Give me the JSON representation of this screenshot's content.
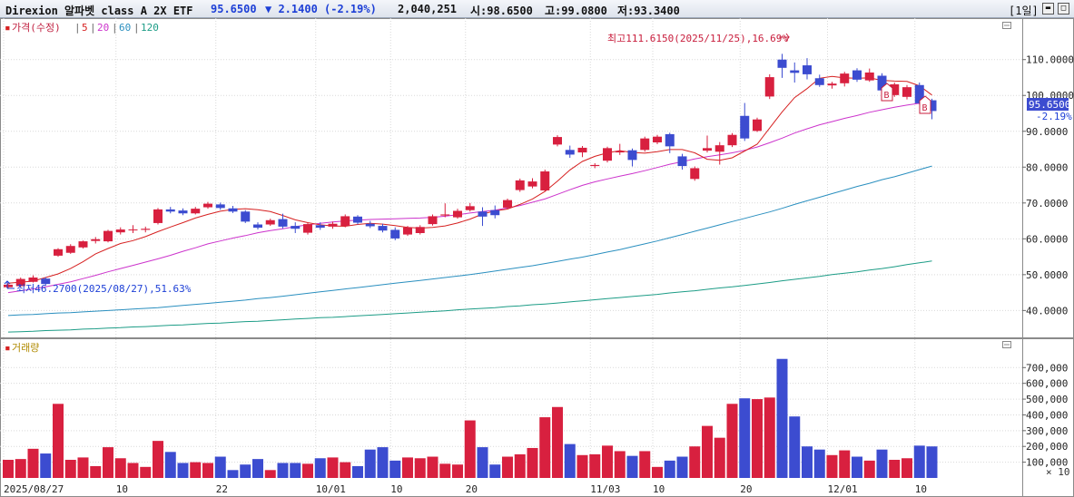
{
  "header": {
    "name": "Direxion 알파벳 class A 2X ETF",
    "price": "95.6500",
    "change": "▼ 2.1400 (-2.19%)",
    "volume": "2,040,251",
    "open": "시:98.6500",
    "high": "고:99.0800",
    "low": "저:93.3400",
    "period": "[1일]"
  },
  "price_legend": {
    "marker": "▪",
    "label": "가격(수정)",
    "ma": [
      "5",
      "20",
      "60",
      "120"
    ],
    "ma_colors": [
      "#d62020",
      "#cc33cc",
      "#2a8fbf",
      "#1c9c86"
    ]
  },
  "volume_legend": {
    "label": "거래량"
  },
  "annotations": {
    "high": "최고111.6150(2025/11/25),16.69%",
    "low": "최저46.2700(2025/08/27),51.63%",
    "last_price": "95.6500",
    "last_change": "-2.19%",
    "b_marker": "B",
    "unit": "× 10"
  },
  "colors": {
    "up": "#d8203f",
    "down": "#3c4cd0",
    "grid": "#d9d9d9",
    "ma5": "#d62020",
    "ma20": "#cc33cc",
    "ma60": "#2a8fbf",
    "ma120": "#1c9c86"
  },
  "chart_data": {
    "type": "candlestick",
    "price_axis": {
      "ticks": [
        "110.0000",
        "100.0000",
        "90.0000",
        "80.0000",
        "70.0000",
        "60.0000",
        "50.0000",
        "40.0000"
      ],
      "values": [
        110,
        100,
        90,
        80,
        70,
        60,
        50,
        40
      ],
      "range": [
        32.5,
        116
      ]
    },
    "volume_axis": {
      "ticks": [
        "700,000",
        "600,000",
        "500,000",
        "400,000",
        "300,000",
        "200,000",
        "100,000"
      ],
      "values": [
        700000,
        600000,
        500000,
        400000,
        300000,
        200000,
        100000
      ],
      "range": [
        0,
        880000
      ]
    },
    "x_labels": [
      {
        "index": 0,
        "label": "2025/08/27"
      },
      {
        "index": 9,
        "label": "10"
      },
      {
        "index": 17,
        "label": "22"
      },
      {
        "index": 25,
        "label": "10/01"
      },
      {
        "index": 31,
        "label": "10"
      },
      {
        "index": 37,
        "label": "20"
      },
      {
        "index": 47,
        "label": "11/03"
      },
      {
        "index": 52,
        "label": "10"
      },
      {
        "index": 59,
        "label": "20"
      },
      {
        "index": 66,
        "label": "12/01"
      },
      {
        "index": 73,
        "label": "10"
      }
    ],
    "candles": [
      {
        "o": 46.5,
        "h": 47.6,
        "l": 46.27,
        "c": 47.2
      },
      {
        "o": 46.8,
        "h": 49.2,
        "l": 46.6,
        "c": 48.8
      },
      {
        "o": 48.0,
        "h": 49.8,
        "l": 47.8,
        "c": 49.2
      },
      {
        "o": 48.9,
        "h": 49.3,
        "l": 46.9,
        "c": 47.4
      },
      {
        "o": 55.3,
        "h": 57.4,
        "l": 55.0,
        "c": 57.1
      },
      {
        "o": 56.1,
        "h": 58.5,
        "l": 55.8,
        "c": 58.0
      },
      {
        "o": 57.6,
        "h": 59.5,
        "l": 57.3,
        "c": 59.3
      },
      {
        "o": 59.4,
        "h": 60.5,
        "l": 58.7,
        "c": 59.9
      },
      {
        "o": 59.3,
        "h": 62.5,
        "l": 59.0,
        "c": 62.2
      },
      {
        "o": 61.8,
        "h": 63.2,
        "l": 61.2,
        "c": 62.6
      },
      {
        "o": 62.4,
        "h": 63.8,
        "l": 61.6,
        "c": 62.6
      },
      {
        "o": 62.5,
        "h": 63.4,
        "l": 61.8,
        "c": 62.8
      },
      {
        "o": 64.4,
        "h": 68.6,
        "l": 64.0,
        "c": 68.2
      },
      {
        "o": 68.2,
        "h": 68.9,
        "l": 67.1,
        "c": 67.6
      },
      {
        "o": 67.9,
        "h": 68.5,
        "l": 66.6,
        "c": 67.1
      },
      {
        "o": 67.1,
        "h": 68.9,
        "l": 66.8,
        "c": 68.4
      },
      {
        "o": 68.8,
        "h": 70.3,
        "l": 68.4,
        "c": 69.8
      },
      {
        "o": 69.6,
        "h": 70.1,
        "l": 68.1,
        "c": 68.6
      },
      {
        "o": 68.5,
        "h": 69.2,
        "l": 67.2,
        "c": 67.6
      },
      {
        "o": 67.6,
        "h": 68.0,
        "l": 64.4,
        "c": 64.8
      },
      {
        "o": 64.0,
        "h": 64.6,
        "l": 62.6,
        "c": 63.1
      },
      {
        "o": 64.0,
        "h": 65.6,
        "l": 63.6,
        "c": 65.2
      },
      {
        "o": 65.5,
        "h": 67.0,
        "l": 62.9,
        "c": 63.4
      },
      {
        "o": 63.6,
        "h": 64.6,
        "l": 61.6,
        "c": 62.8
      },
      {
        "o": 61.7,
        "h": 64.5,
        "l": 61.2,
        "c": 64.1
      },
      {
        "o": 63.8,
        "h": 64.6,
        "l": 62.5,
        "c": 63.1
      },
      {
        "o": 63.4,
        "h": 64.8,
        "l": 62.8,
        "c": 64.2
      },
      {
        "o": 63.6,
        "h": 66.8,
        "l": 63.2,
        "c": 66.3
      },
      {
        "o": 66.2,
        "h": 66.6,
        "l": 64.0,
        "c": 64.5
      },
      {
        "o": 64.2,
        "h": 65.0,
        "l": 63.0,
        "c": 63.5
      },
      {
        "o": 63.6,
        "h": 64.2,
        "l": 61.8,
        "c": 62.3
      },
      {
        "o": 62.5,
        "h": 63.2,
        "l": 59.6,
        "c": 60.1
      },
      {
        "o": 61.2,
        "h": 63.6,
        "l": 60.8,
        "c": 63.2
      },
      {
        "o": 61.6,
        "h": 63.8,
        "l": 61.2,
        "c": 63.3
      },
      {
        "o": 64.1,
        "h": 66.8,
        "l": 63.7,
        "c": 66.3
      },
      {
        "o": 66.5,
        "h": 69.9,
        "l": 66.0,
        "c": 66.8
      },
      {
        "o": 66.0,
        "h": 68.4,
        "l": 65.6,
        "c": 67.8
      },
      {
        "o": 68.0,
        "h": 70.0,
        "l": 67.6,
        "c": 69.1
      },
      {
        "o": 67.6,
        "h": 68.8,
        "l": 63.6,
        "c": 66.2
      },
      {
        "o": 68.0,
        "h": 69.3,
        "l": 65.7,
        "c": 66.6
      },
      {
        "o": 68.7,
        "h": 71.2,
        "l": 68.2,
        "c": 70.8
      },
      {
        "o": 73.6,
        "h": 76.8,
        "l": 73.1,
        "c": 76.3
      },
      {
        "o": 74.6,
        "h": 76.9,
        "l": 74.1,
        "c": 76.0
      },
      {
        "o": 73.5,
        "h": 79.3,
        "l": 73.2,
        "c": 78.8
      },
      {
        "o": 86.3,
        "h": 88.9,
        "l": 85.8,
        "c": 88.4
      },
      {
        "o": 84.8,
        "h": 86.0,
        "l": 82.6,
        "c": 83.5
      },
      {
        "o": 84.1,
        "h": 85.9,
        "l": 82.8,
        "c": 85.4
      },
      {
        "o": 80.3,
        "h": 81.1,
        "l": 79.7,
        "c": 80.6
      },
      {
        "o": 81.8,
        "h": 85.7,
        "l": 81.3,
        "c": 85.3
      },
      {
        "o": 84.1,
        "h": 86.5,
        "l": 83.4,
        "c": 84.5
      },
      {
        "o": 84.7,
        "h": 85.2,
        "l": 80.2,
        "c": 82.0
      },
      {
        "o": 84.8,
        "h": 88.5,
        "l": 84.3,
        "c": 88.0
      },
      {
        "o": 86.9,
        "h": 89.0,
        "l": 86.4,
        "c": 88.5
      },
      {
        "o": 89.2,
        "h": 89.6,
        "l": 83.9,
        "c": 85.8
      },
      {
        "o": 83.0,
        "h": 83.7,
        "l": 79.3,
        "c": 80.3
      },
      {
        "o": 76.7,
        "h": 80.2,
        "l": 76.2,
        "c": 79.7
      },
      {
        "o": 84.6,
        "h": 88.8,
        "l": 84.1,
        "c": 85.3
      },
      {
        "o": 84.3,
        "h": 87.0,
        "l": 80.7,
        "c": 86.1
      },
      {
        "o": 86.1,
        "h": 89.5,
        "l": 85.6,
        "c": 89.0
      },
      {
        "o": 94.3,
        "h": 97.9,
        "l": 87.3,
        "c": 88.0
      },
      {
        "o": 90.1,
        "h": 93.8,
        "l": 89.8,
        "c": 93.3
      },
      {
        "o": 99.7,
        "h": 105.9,
        "l": 99.0,
        "c": 105.1
      },
      {
        "o": 110.0,
        "h": 111.6,
        "l": 104.9,
        "c": 107.7
      },
      {
        "o": 107.0,
        "h": 109.2,
        "l": 103.6,
        "c": 106.3
      },
      {
        "o": 108.4,
        "h": 110.4,
        "l": 104.5,
        "c": 105.9
      },
      {
        "o": 104.8,
        "h": 105.8,
        "l": 102.4,
        "c": 102.9
      },
      {
        "o": 102.8,
        "h": 103.8,
        "l": 101.9,
        "c": 103.3
      },
      {
        "o": 103.4,
        "h": 106.6,
        "l": 102.5,
        "c": 106.1
      },
      {
        "o": 107.0,
        "h": 107.6,
        "l": 103.8,
        "c": 104.4
      },
      {
        "o": 104.2,
        "h": 107.5,
        "l": 103.8,
        "c": 106.4
      },
      {
        "o": 105.5,
        "h": 106.2,
        "l": 101.6,
        "c": 101.4
      },
      {
        "o": 100.1,
        "h": 103.6,
        "l": 99.6,
        "c": 103.1
      },
      {
        "o": 99.6,
        "h": 102.9,
        "l": 98.9,
        "c": 102.3
      },
      {
        "o": 102.9,
        "h": 103.6,
        "l": 97.5,
        "c": 97.8
      },
      {
        "o": 98.65,
        "h": 99.08,
        "l": 93.34,
        "c": 95.65
      }
    ],
    "volume": [
      115000,
      120000,
      185000,
      155000,
      470000,
      115000,
      130000,
      75000,
      195000,
      125000,
      95000,
      70000,
      235000,
      165000,
      95000,
      100000,
      95000,
      135000,
      50000,
      85000,
      120000,
      50000,
      95000,
      95000,
      90000,
      125000,
      130000,
      100000,
      75000,
      180000,
      195000,
      110000,
      130000,
      125000,
      135000,
      90000,
      85000,
      365000,
      195000,
      85000,
      135000,
      150000,
      190000,
      385000,
      450000,
      215000,
      145000,
      150000,
      205000,
      170000,
      140000,
      170000,
      70000,
      110000,
      135000,
      200000,
      330000,
      255000,
      470000,
      505000,
      500000,
      510000,
      755000,
      390000,
      200000,
      180000,
      145000,
      175000,
      135000,
      110000,
      180000,
      115000,
      125000,
      205000,
      200000
    ],
    "ma": {
      "ma5": [
        47.6,
        47.9,
        48.2,
        49.2,
        50.2,
        51.7,
        53.6,
        55.8,
        57.3,
        58.7,
        59.5,
        60.6,
        62.0,
        63.3,
        64.5,
        65.8,
        66.8,
        67.7,
        68.2,
        68.4,
        68.1,
        67.6,
        66.5,
        65.3,
        64.5,
        63.9,
        63.6,
        63.5,
        64.0,
        64.3,
        64.1,
        63.7,
        63.2,
        63.0,
        63.2,
        63.6,
        64.4,
        65.5,
        66.9,
        67.8,
        68.3,
        69.6,
        71.1,
        73.2,
        76.1,
        79.2,
        81.6,
        83.0,
        84.0,
        84.6,
        84.1,
        83.9,
        84.3,
        84.9,
        84.9,
        84.0,
        82.2,
        81.9,
        82.6,
        84.5,
        86.4,
        90.9,
        95.4,
        99.4,
        101.9,
        104.8,
        105.3,
        104.9,
        104.8,
        104.9,
        104.2,
        104.0,
        103.9,
        102.7,
        100.1
      ],
      "ma20": [
        45.0,
        45.5,
        46.0,
        46.6,
        47.3,
        48.0,
        48.9,
        49.8,
        50.8,
        51.7,
        52.6,
        53.5,
        54.4,
        55.4,
        56.5,
        57.5,
        58.6,
        59.4,
        60.2,
        60.9,
        61.7,
        62.3,
        62.8,
        63.4,
        63.9,
        64.3,
        64.7,
        65.0,
        65.2,
        65.4,
        65.5,
        65.6,
        65.7,
        65.8,
        66.0,
        66.3,
        66.7,
        67.2,
        67.6,
        68.0,
        68.6,
        69.3,
        70.2,
        71.1,
        72.4,
        73.7,
        74.9,
        75.9,
        76.7,
        77.5,
        78.2,
        79.0,
        79.9,
        80.8,
        81.5,
        82.3,
        82.9,
        83.4,
        84.0,
        84.7,
        85.6,
        86.8,
        88.1,
        89.5,
        90.7,
        91.8,
        92.7,
        93.6,
        94.4,
        95.3,
        96.0,
        96.7,
        97.3,
        97.8,
        98.0
      ],
      "ma60": [
        38.6,
        38.8,
        38.9,
        39.1,
        39.3,
        39.4,
        39.6,
        39.8,
        40.0,
        40.2,
        40.4,
        40.6,
        40.8,
        41.1,
        41.4,
        41.7,
        42.0,
        42.3,
        42.6,
        42.9,
        43.3,
        43.6,
        44.0,
        44.4,
        44.8,
        45.2,
        45.6,
        46.0,
        46.4,
        46.8,
        47.2,
        47.6,
        48.0,
        48.4,
        48.8,
        49.2,
        49.6,
        50.0,
        50.5,
        51.0,
        51.5,
        52.0,
        52.5,
        53.1,
        53.7,
        54.3,
        54.9,
        55.6,
        56.3,
        57.0,
        57.8,
        58.6,
        59.4,
        60.3,
        61.2,
        62.1,
        63.0,
        63.9,
        64.8,
        65.7,
        66.6,
        67.5,
        68.5,
        69.6,
        70.6,
        71.6,
        72.6,
        73.6,
        74.6,
        75.5,
        76.5,
        77.3,
        78.3,
        79.3,
        80.3
      ],
      "ma120": [
        34.0,
        34.1,
        34.2,
        34.4,
        34.5,
        34.6,
        34.8,
        34.9,
        35.1,
        35.2,
        35.4,
        35.5,
        35.7,
        35.9,
        36.0,
        36.2,
        36.4,
        36.5,
        36.7,
        36.9,
        37.0,
        37.2,
        37.4,
        37.6,
        37.8,
        38.0,
        38.1,
        38.3,
        38.5,
        38.7,
        38.9,
        39.1,
        39.3,
        39.5,
        39.7,
        39.9,
        40.2,
        40.4,
        40.6,
        40.8,
        41.1,
        41.3,
        41.6,
        41.8,
        42.1,
        42.4,
        42.7,
        43.0,
        43.3,
        43.6,
        43.9,
        44.2,
        44.5,
        44.9,
        45.2,
        45.5,
        45.9,
        46.3,
        46.6,
        47.0,
        47.4,
        47.8,
        48.3,
        48.7,
        49.1,
        49.5,
        50.0,
        50.4,
        50.8,
        51.3,
        51.7,
        52.2,
        52.8,
        53.3,
        53.8
      ]
    }
  }
}
